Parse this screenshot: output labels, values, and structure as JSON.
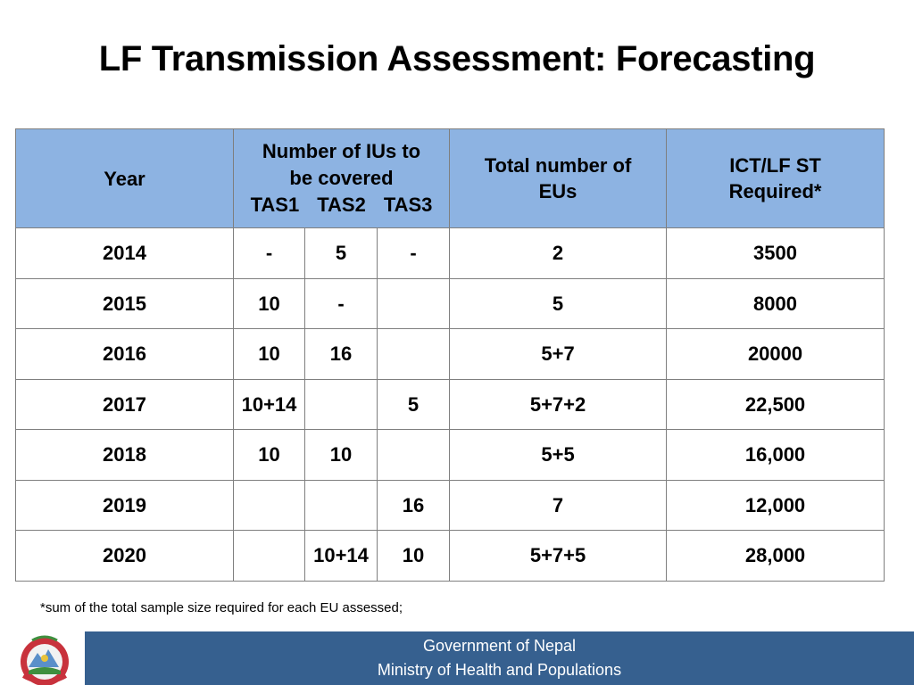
{
  "title": "LF Transmission Assessment: Forecasting",
  "table": {
    "headers": {
      "year": "Year",
      "ius_line1": "Number of IUs to",
      "ius_line2": "be covered",
      "tas1": "TAS1",
      "tas2": "TAS2",
      "tas3": "TAS3",
      "eus_line1": "Total number of",
      "eus_line2": "EUs",
      "ict_line1": "ICT/LF ST",
      "ict_line2": "Required*"
    },
    "rows": [
      {
        "year": "2014",
        "tas1": "-",
        "tas2": "5",
        "tas3": "-",
        "eus": "2",
        "ict": "3500"
      },
      {
        "year": "2015",
        "tas1": "10",
        "tas2": "-",
        "tas3": "",
        "eus": "5",
        "ict": "8000"
      },
      {
        "year": "2016",
        "tas1": "10",
        "tas2": "16",
        "tas3": "",
        "eus": "5+7",
        "ict": "20000"
      },
      {
        "year": "2017",
        "tas1": "10+14",
        "tas2": "",
        "tas3": "5",
        "eus": "5+7+2",
        "ict": "22,500"
      },
      {
        "year": "2018",
        "tas1": "10",
        "tas2": "10",
        "tas3": "",
        "eus": "5+5",
        "ict": "16,000"
      },
      {
        "year": "2019",
        "tas1": "",
        "tas2": "",
        "tas3": "16",
        "eus": "7",
        "ict": "12,000"
      },
      {
        "year": "2020",
        "tas1": "",
        "tas2": "10+14",
        "tas3": "10",
        "eus": "5+7+5",
        "ict": "28,000"
      }
    ]
  },
  "footnote": "*sum of the total sample size required for each EU assessed;",
  "footer": {
    "line1": "Government of Nepal",
    "line2": "Ministry of Health and Populations"
  },
  "colors": {
    "header_fill": "#8db3e2",
    "footer_fill": "#36608f"
  },
  "logo": "nepal-emblem-icon"
}
